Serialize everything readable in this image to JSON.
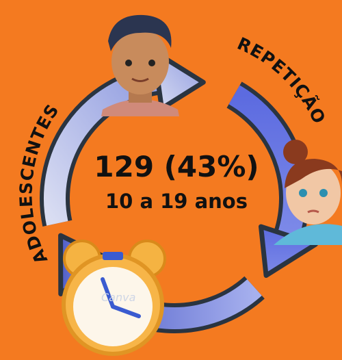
{
  "headline": "129 (43%)",
  "subline": "10 a 19 anos",
  "left_label": "ADOLESCENTES",
  "right_label": "REPETIÇÃO",
  "watermark": "Canva"
}
